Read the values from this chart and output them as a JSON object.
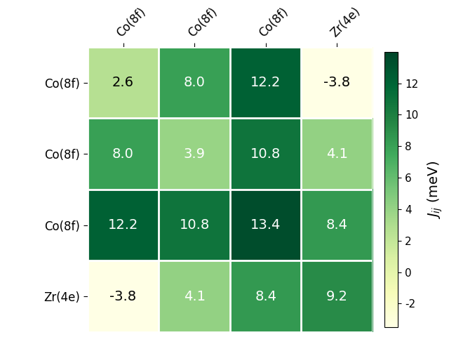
{
  "matrix": [
    [
      2.6,
      8.0,
      12.2,
      -3.8
    ],
    [
      8.0,
      3.9,
      10.8,
      4.1
    ],
    [
      12.2,
      10.8,
      13.4,
      8.4
    ],
    [
      -3.8,
      4.1,
      8.4,
      9.2
    ]
  ],
  "row_labels": [
    "Co(8f)",
    "Co(8f)",
    "Co(8f)",
    "Zr(4e)"
  ],
  "col_labels": [
    "Co(8f)",
    "Co(8f)",
    "Co(8f)",
    "Zr(4e)"
  ],
  "vmin": -3.5,
  "vmax": 14.0,
  "cmap": "YlGn",
  "figsize": [
    6.4,
    4.8
  ],
  "dpi": 100,
  "colorbar_ticks": [
    -2,
    0,
    2,
    4,
    6,
    8,
    10,
    12
  ],
  "font_size_cell": 14,
  "font_size_labels": 12,
  "font_size_cbar": 14
}
